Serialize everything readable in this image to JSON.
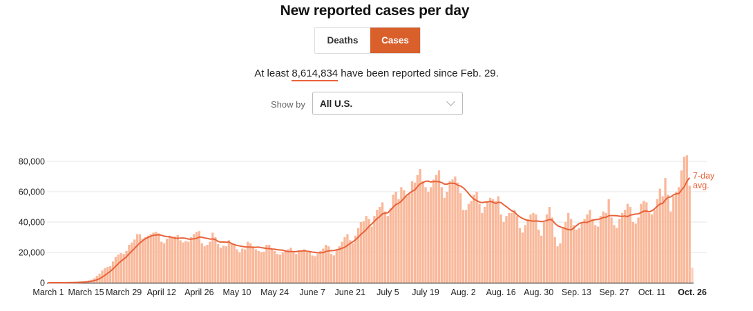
{
  "header": {
    "title": "New reported cases per day"
  },
  "toggle": {
    "options": [
      "Deaths",
      "Cases"
    ],
    "selected": "Cases"
  },
  "summary": {
    "prefix": "At least ",
    "total": "8,614,834",
    "suffix": " have been reported since Feb. 29."
  },
  "filter": {
    "label": "Show by",
    "value": "All U.S."
  },
  "colors": {
    "accent": "#d95f2b",
    "bar": "#f9b89a",
    "line": "#e8623a"
  },
  "chart_data": {
    "type": "bar",
    "start_date": "March 1",
    "end_date": "Oct. 26",
    "ylim": [
      0,
      80000
    ],
    "yticks": [
      0,
      20000,
      40000,
      60000,
      80000
    ],
    "ytick_labels": [
      "0",
      "20,000",
      "40,000",
      "60,000",
      "80,000"
    ],
    "xtick_labels": [
      "March 1",
      "March 15",
      "March 29",
      "April 12",
      "April 26",
      "May 10",
      "May 24",
      "June 7",
      "June 21",
      "July 5",
      "July 19",
      "Aug. 2",
      "Aug. 16",
      "Aug. 30",
      "Sep. 13",
      "Sep. 27",
      "Oct. 11",
      "Oct. 26"
    ],
    "grid": true,
    "line_label": "7-day avg.",
    "values": [
      0,
      0,
      10,
      20,
      30,
      50,
      100,
      100,
      200,
      300,
      400,
      500,
      700,
      800,
      1000,
      1500,
      2000,
      3000,
      4500,
      6000,
      8000,
      9500,
      10500,
      11000,
      14000,
      17000,
      18500,
      19500,
      19000,
      21000,
      25000,
      26500,
      28500,
      32000,
      32000,
      29000,
      30000,
      31000,
      32000,
      33000,
      33500,
      32500,
      27000,
      26000,
      29000,
      31000,
      30000,
      30500,
      31500,
      28000,
      26500,
      27500,
      27000,
      30000,
      32000,
      33500,
      34000,
      26000,
      24000,
      25000,
      27000,
      33000,
      30000,
      25500,
      23000,
      24500,
      24000,
      28000,
      26000,
      25000,
      22000,
      20000,
      22500,
      22000,
      27000,
      26000,
      24000,
      22000,
      21000,
      20000,
      20500,
      25000,
      25000,
      22000,
      21000,
      19000,
      18500,
      20000,
      21000,
      22000,
      23000,
      20000,
      19000,
      21000,
      20500,
      22000,
      20000,
      21000,
      18000,
      17500,
      19000,
      21000,
      22500,
      25000,
      24000,
      19000,
      18000,
      22000,
      24000,
      27000,
      30000,
      32000,
      28000,
      26000,
      31000,
      36000,
      40000,
      40500,
      44000,
      42000,
      37000,
      44000,
      48000,
      50000,
      53000,
      47000,
      44000,
      49000,
      58000,
      60000,
      55000,
      63000,
      61000,
      57000,
      59000,
      67000,
      66000,
      71000,
      75000,
      67000,
      63000,
      60000,
      63000,
      68000,
      71000,
      74000,
      63000,
      56000,
      60000,
      67000,
      68000,
      70000,
      66000,
      59000,
      48000,
      48000,
      52000,
      54000,
      58000,
      60000,
      52000,
      46000,
      50000,
      53000,
      56000,
      55000,
      54000,
      57000,
      45000,
      40000,
      44000,
      46000,
      46000,
      48000,
      44000,
      36000,
      33000,
      38000,
      42000,
      45000,
      46000,
      45000,
      35000,
      31000,
      40000,
      45000,
      50000,
      43000,
      30000,
      24000,
      26000,
      36000,
      40000,
      46000,
      42000,
      38000,
      35000,
      36000,
      40000,
      42000,
      45000,
      48000,
      42000,
      38000,
      37000,
      44000,
      47000,
      46000,
      55000,
      43000,
      38000,
      36000,
      42000,
      46000,
      48000,
      52000,
      50000,
      40000,
      39000,
      43000,
      52000,
      54000,
      53000,
      46000,
      45000,
      48000,
      55000,
      62000,
      57000,
      69000,
      58000,
      47000,
      57000,
      60000,
      63000,
      74000,
      83000,
      84000,
      64000,
      10000
    ]
  }
}
